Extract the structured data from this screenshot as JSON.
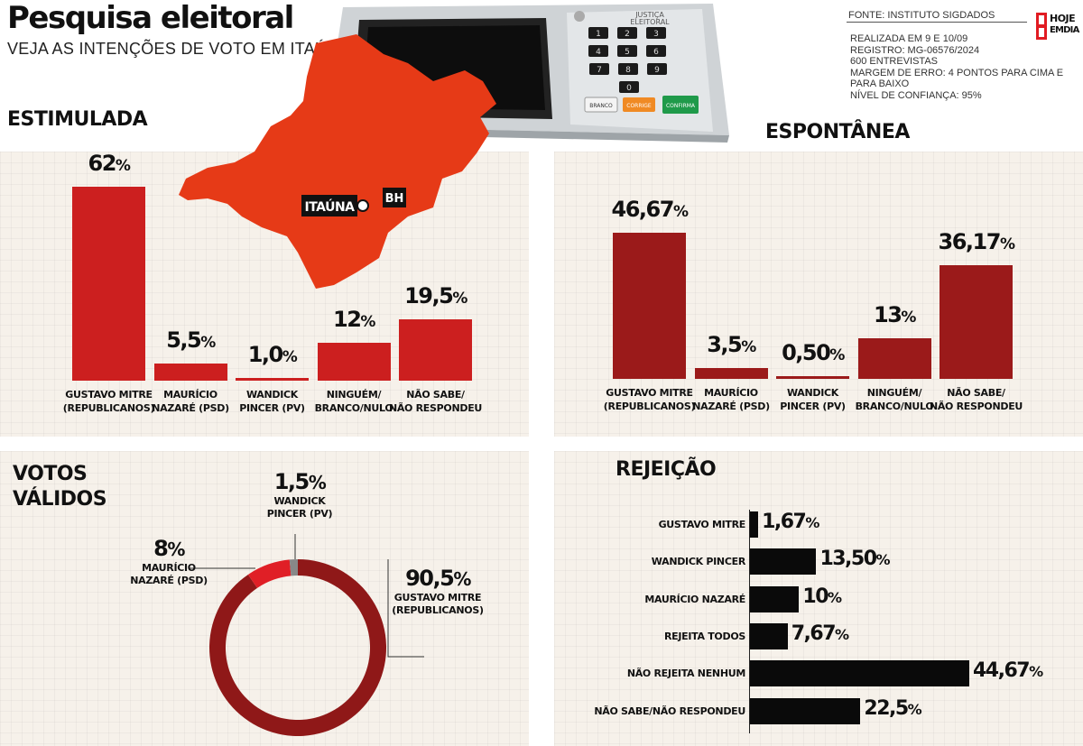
{
  "header": {
    "title": "Pesquisa eleitoral",
    "subtitle": "VEJA AS INTENÇÕES DE VOTO EM ITAÚNA",
    "source": "FONTE: INSTITUTO SIGDADOS",
    "meta": [
      "REALIZADA EM 9 E 10/09",
      "REGISTRO: MG-06576/2024",
      "600 ENTREVISTAS",
      "MARGEM DE ERRO: 4 PONTOS PARA CIMA E PARA BAIXO",
      "NÍVEL DE CONFIANÇA: 95%"
    ],
    "logo_top": "HOJE",
    "logo_bottom": "EMDIA"
  },
  "map": {
    "city_label": "ITAÚNA",
    "capital_label": "BH",
    "color": "#e63a17"
  },
  "urn": {
    "label1": "JUSTIÇA",
    "label2": "ELEITORAL",
    "keys": [
      "1",
      "2",
      "3",
      "4",
      "5",
      "6",
      "7",
      "8",
      "9",
      "0"
    ],
    "btn_branco": "BRANCO",
    "btn_corrige": "CORRIGE",
    "btn_confirma": "CONFIRMA"
  },
  "colors": {
    "estimulada_bar": "#cc1f1f",
    "espontanea_bar": "#9b1a1a",
    "donut_main": "#8f1818",
    "donut_second": "#e01f26",
    "donut_third": "#888888",
    "rejeicao_bar": "#0a0a0a"
  },
  "chart_data": [
    {
      "id": "estimulada",
      "type": "bar",
      "title": "ESTIMULADA",
      "unit": "%",
      "categories": [
        [
          "GUSTAVO MITRE",
          "(REPUBLICANOS)"
        ],
        [
          "MAURÍCIO",
          "NAZARÉ (PSD)"
        ],
        [
          "WANDICK",
          "PINCER (PV)"
        ],
        [
          "NINGUÉM/",
          "BRANCO/NULO"
        ],
        [
          "NÃO SABE/",
          "NÃO RESPONDEU"
        ]
      ],
      "labels": [
        "62",
        "5,5",
        "1,0",
        "12",
        "19,5"
      ],
      "values": [
        62,
        5.5,
        1.0,
        12,
        19.5
      ]
    },
    {
      "id": "espontanea",
      "type": "bar",
      "title": "ESPONTÂNEA",
      "unit": "%",
      "categories": [
        [
          "GUSTAVO MITRE",
          "(REPUBLICANOS)"
        ],
        [
          "MAURÍCIO",
          "NAZARÉ (PSD)"
        ],
        [
          "WANDICK",
          "PINCER (PV)"
        ],
        [
          "NINGUÉM/",
          "BRANCO/NULO"
        ],
        [
          "NÃO SABE/",
          "NÃO RESPONDEU"
        ]
      ],
      "labels": [
        "46,67",
        "3,5",
        "0,50",
        "13",
        "36,17"
      ],
      "values": [
        46.67,
        3.5,
        0.5,
        13,
        36.17
      ]
    },
    {
      "id": "votos_validos",
      "type": "pie",
      "title": [
        "VOTOS",
        "VÁLIDOS"
      ],
      "unit": "%",
      "slices": [
        {
          "label": [
            "GUSTAVO MITRE",
            "(REPUBLICANOS)"
          ],
          "value_label": "90,5",
          "value": 90.5
        },
        {
          "label": [
            "MAURÍCIO",
            "NAZARÉ (PSD)"
          ],
          "value_label": "8",
          "value": 8
        },
        {
          "label": [
            "WANDICK",
            "PINCER (PV)"
          ],
          "value_label": "1,5",
          "value": 1.5
        }
      ]
    },
    {
      "id": "rejeicao",
      "type": "bar",
      "orientation": "horizontal",
      "title": "REJEIÇÃO",
      "unit": "%",
      "categories": [
        "GUSTAVO MITRE",
        "WANDICK PINCER",
        "MAURÍCIO NAZARÉ",
        "REJEITA TODOS",
        "NÃO REJEITA NENHUM",
        "NÃO SABE/NÃO RESPONDEU"
      ],
      "labels": [
        "1,67",
        "13,50",
        "10",
        "7,67",
        "44,67",
        "22,5"
      ],
      "values": [
        1.67,
        13.5,
        10,
        7.67,
        44.67,
        22.5
      ]
    }
  ]
}
